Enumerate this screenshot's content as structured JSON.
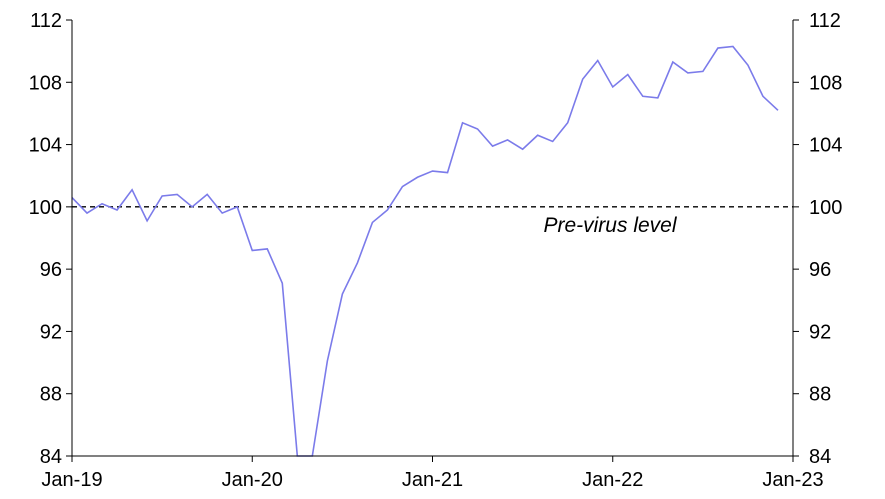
{
  "chart_data": {
    "type": "line",
    "title": "",
    "xlabel": "",
    "ylabel": "",
    "ylim": [
      84,
      112
    ],
    "yticks": [
      84,
      88,
      92,
      96,
      100,
      104,
      108,
      112
    ],
    "ytick_labels": [
      "84",
      "88",
      "92",
      "96",
      "100",
      "104",
      "108",
      "112"
    ],
    "xticks": [
      {
        "label": "Jan-19",
        "month_index": 0
      },
      {
        "label": "Jan-20",
        "month_index": 12
      },
      {
        "label": "Jan-21",
        "month_index": 24
      },
      {
        "label": "Jan-22",
        "month_index": 36
      },
      {
        "label": "Jan-23",
        "month_index": 48
      }
    ],
    "grid": false,
    "dual_y_axis": true,
    "series": [
      {
        "color": "#7b7bea",
        "values": [
          100.6,
          99.6,
          100.2,
          99.8,
          101.1,
          99.1,
          100.7,
          100.8,
          100.0,
          100.8,
          99.6,
          100.0,
          97.2,
          97.3,
          95.1,
          84.0,
          84.0,
          90.1,
          94.4,
          96.4,
          99.0,
          99.8,
          101.3,
          101.9,
          102.3,
          102.2,
          105.4,
          105.0,
          103.9,
          104.3,
          103.7,
          104.6,
          104.2,
          105.4,
          108.2,
          109.4,
          107.7,
          108.5,
          107.1,
          107.0,
          109.3,
          108.6,
          108.7,
          110.2,
          110.3,
          109.1,
          107.1,
          106.2
        ]
      }
    ],
    "reference_line": {
      "value": 100,
      "style": "dashed",
      "color": "#000000"
    },
    "annotations": [
      {
        "text": "Pre-virus level"
      }
    ]
  }
}
